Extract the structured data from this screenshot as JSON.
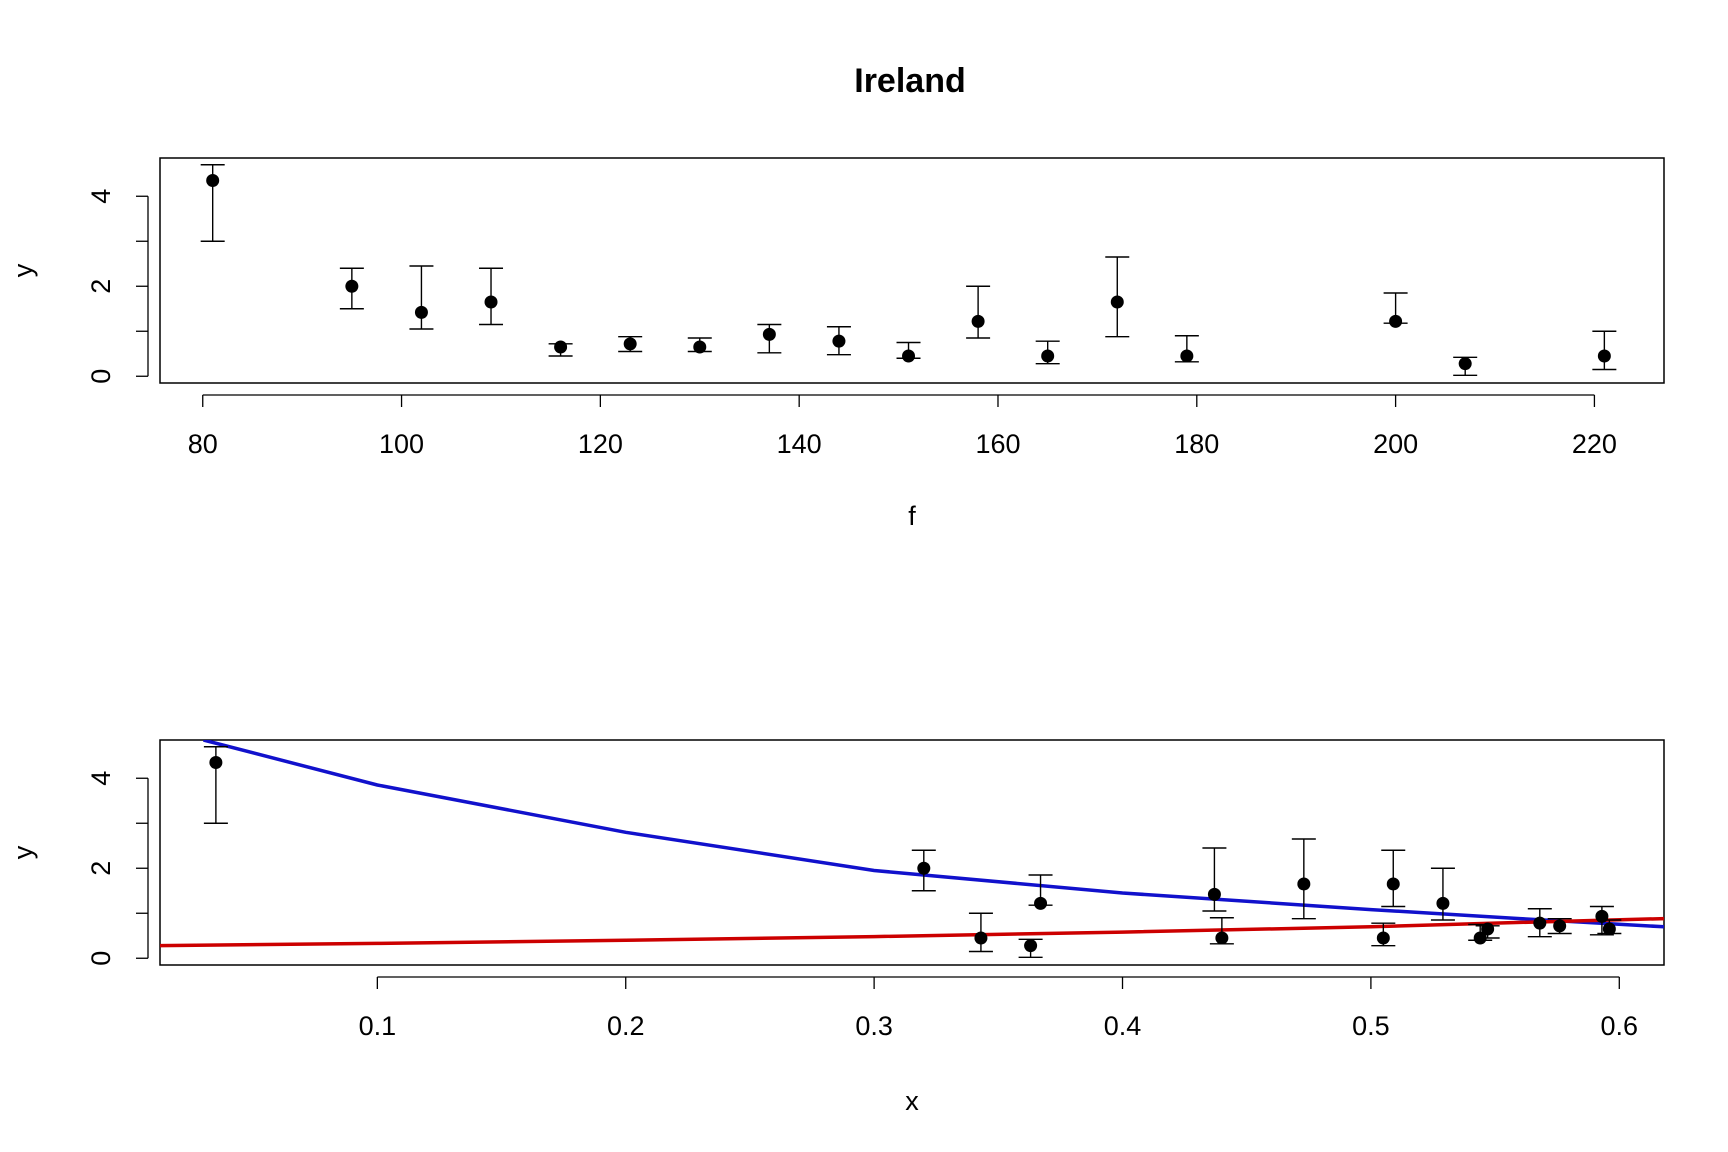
{
  "title": "Ireland",
  "chart_data": [
    {
      "type": "scatter",
      "title": "Ireland",
      "xlabel": "f",
      "ylabel": "y",
      "xlim": [
        75.7,
        227.0
      ],
      "ylim": [
        -0.15,
        4.85
      ],
      "x_ticks": [
        80,
        100,
        120,
        140,
        160,
        180,
        200,
        220
      ],
      "y_ticks": [
        0,
        2,
        4
      ],
      "y_minor_ticks": [
        1,
        3
      ],
      "grid": false,
      "series": [
        {
          "points": [
            {
              "x": 81,
              "y": 4.35,
              "lo": 3.0,
              "hi": 4.7
            },
            {
              "x": 95,
              "y": 2.0,
              "lo": 1.5,
              "hi": 2.4
            },
            {
              "x": 102,
              "y": 1.42,
              "lo": 1.05,
              "hi": 2.45
            },
            {
              "x": 109,
              "y": 1.65,
              "lo": 1.15,
              "hi": 2.4
            },
            {
              "x": 116,
              "y": 0.65,
              "lo": 0.45,
              "hi": 0.72
            },
            {
              "x": 123,
              "y": 0.72,
              "lo": 0.55,
              "hi": 0.88
            },
            {
              "x": 130,
              "y": 0.65,
              "lo": 0.55,
              "hi": 0.85
            },
            {
              "x": 137,
              "y": 0.93,
              "lo": 0.52,
              "hi": 1.15
            },
            {
              "x": 144,
              "y": 0.78,
              "lo": 0.48,
              "hi": 1.1
            },
            {
              "x": 151,
              "y": 0.45,
              "lo": 0.4,
              "hi": 0.75
            },
            {
              "x": 158,
              "y": 1.22,
              "lo": 0.85,
              "hi": 2.0
            },
            {
              "x": 165,
              "y": 0.45,
              "lo": 0.28,
              "hi": 0.78
            },
            {
              "x": 172,
              "y": 1.65,
              "lo": 0.88,
              "hi": 2.65
            },
            {
              "x": 179,
              "y": 0.45,
              "lo": 0.32,
              "hi": 0.9
            },
            {
              "x": 200,
              "y": 1.22,
              "lo": 1.18,
              "hi": 1.85
            },
            {
              "x": 207,
              "y": 0.28,
              "lo": 0.02,
              "hi": 0.42
            },
            {
              "x": 221,
              "y": 0.45,
              "lo": 0.15,
              "hi": 1.0
            }
          ]
        }
      ]
    },
    {
      "type": "scatter",
      "title": "",
      "xlabel": "x",
      "ylabel": "y",
      "xlim": [
        0.0125,
        0.618
      ],
      "ylim": [
        -0.15,
        4.85
      ],
      "x_ticks": [
        0.1,
        0.2,
        0.3,
        0.4,
        0.5,
        0.6
      ],
      "y_ticks": [
        0,
        2,
        4
      ],
      "y_minor_ticks": [
        1,
        3
      ],
      "grid": false,
      "series": [
        {
          "points": [
            {
              "x": 0.035,
              "y": 4.35,
              "lo": 3.0,
              "hi": 4.7
            },
            {
              "x": 0.32,
              "y": 2.0,
              "lo": 1.5,
              "hi": 2.4
            },
            {
              "x": 0.343,
              "y": 0.45,
              "lo": 0.15,
              "hi": 1.0
            },
            {
              "x": 0.363,
              "y": 0.28,
              "lo": 0.02,
              "hi": 0.42
            },
            {
              "x": 0.367,
              "y": 1.22,
              "lo": 1.18,
              "hi": 1.85
            },
            {
              "x": 0.437,
              "y": 1.42,
              "lo": 1.05,
              "hi": 2.45
            },
            {
              "x": 0.44,
              "y": 0.45,
              "lo": 0.32,
              "hi": 0.9
            },
            {
              "x": 0.473,
              "y": 1.65,
              "lo": 0.88,
              "hi": 2.65
            },
            {
              "x": 0.505,
              "y": 0.45,
              "lo": 0.28,
              "hi": 0.78
            },
            {
              "x": 0.509,
              "y": 1.65,
              "lo": 1.15,
              "hi": 2.4
            },
            {
              "x": 0.529,
              "y": 1.22,
              "lo": 0.85,
              "hi": 2.0
            },
            {
              "x": 0.544,
              "y": 0.45,
              "lo": 0.4,
              "hi": 0.75
            },
            {
              "x": 0.547,
              "y": 0.65,
              "lo": 0.45,
              "hi": 0.72
            },
            {
              "x": 0.568,
              "y": 0.78,
              "lo": 0.48,
              "hi": 1.1
            },
            {
              "x": 0.576,
              "y": 0.72,
              "lo": 0.55,
              "hi": 0.88
            },
            {
              "x": 0.593,
              "y": 0.93,
              "lo": 0.52,
              "hi": 1.15
            },
            {
              "x": 0.596,
              "y": 0.65,
              "lo": 0.55,
              "hi": 0.85
            }
          ]
        }
      ],
      "curves": [
        {
          "color": "#1111cc",
          "x": [
            0.03,
            0.1,
            0.2,
            0.3,
            0.4,
            0.5,
            0.56,
            0.618
          ],
          "y": [
            4.85,
            3.85,
            2.8,
            1.95,
            1.45,
            1.08,
            0.88,
            0.7
          ]
        },
        {
          "color": "#cc0000",
          "x": [
            0.0125,
            0.1,
            0.2,
            0.3,
            0.4,
            0.5,
            0.55,
            0.618
          ],
          "y": [
            0.28,
            0.33,
            0.4,
            0.48,
            0.58,
            0.7,
            0.78,
            0.88
          ]
        }
      ]
    }
  ]
}
